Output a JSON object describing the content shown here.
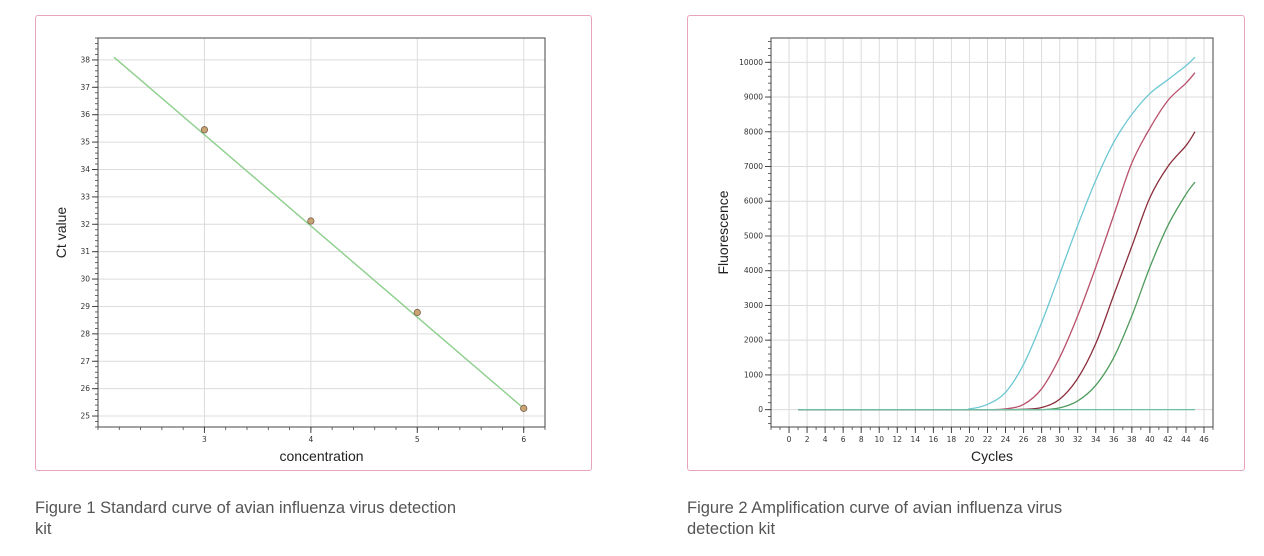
{
  "chart_data": [
    {
      "type": "scatter",
      "title": "",
      "xlabel": "concentration",
      "ylabel": "Ct value",
      "xlim": [
        2.0,
        6.2
      ],
      "ylim": [
        24.6,
        38.8
      ],
      "x_ticks": [
        3,
        4,
        5,
        6
      ],
      "y_ticks": [
        25,
        26,
        27,
        28,
        29,
        30,
        31,
        32,
        33,
        34,
        35,
        36,
        37,
        38
      ],
      "grid": true,
      "points": [
        {
          "x": 3,
          "y": 35.45
        },
        {
          "x": 4,
          "y": 32.12
        },
        {
          "x": 5,
          "y": 28.78
        },
        {
          "x": 6,
          "y": 25.28
        }
      ],
      "fit_line": {
        "x": [
          2.15,
          6.0
        ],
        "y": [
          38.1,
          25.28
        ],
        "color": "#8ccf8c"
      },
      "point_color": "#c8a472"
    },
    {
      "type": "line",
      "title": "",
      "xlabel": "Cycles",
      "ylabel": "Fluorescence",
      "xlim": [
        -2,
        47
      ],
      "ylim": [
        -500,
        10700
      ],
      "x_ticks": [
        0,
        2,
        4,
        6,
        8,
        10,
        12,
        14,
        16,
        18,
        20,
        22,
        24,
        26,
        28,
        30,
        32,
        34,
        36,
        38,
        40,
        42,
        44,
        46
      ],
      "y_ticks": [
        0,
        1000,
        2000,
        3000,
        4000,
        5000,
        6000,
        7000,
        8000,
        9000,
        10000
      ],
      "grid": true,
      "x": [
        1,
        18,
        20,
        22,
        24,
        26,
        28,
        30,
        32,
        34,
        36,
        38,
        40,
        42,
        44,
        45
      ],
      "series": [
        {
          "color": "#6cc8d4",
          "values": [
            0,
            0,
            20,
            150,
            500,
            1300,
            2500,
            3900,
            5300,
            6600,
            7700,
            8500,
            9100,
            9500,
            9900,
            10150
          ]
        },
        {
          "color": "#b84f6a",
          "values": [
            0,
            0,
            0,
            0,
            20,
            150,
            600,
            1500,
            2700,
            4100,
            5600,
            7100,
            8100,
            8900,
            9400,
            9700
          ]
        },
        {
          "color": "#8a2e3c",
          "values": [
            0,
            0,
            0,
            0,
            0,
            10,
            60,
            300,
            900,
            1900,
            3300,
            4700,
            6100,
            7000,
            7600,
            8000
          ]
        },
        {
          "color": "#4f9a5c",
          "values": [
            0,
            0,
            0,
            0,
            0,
            0,
            0,
            50,
            250,
            700,
            1500,
            2700,
            4100,
            5300,
            6200,
            6550
          ]
        },
        {
          "color": "#6cbfa4",
          "values": [
            0,
            0,
            0,
            0,
            0,
            0,
            0,
            0,
            0,
            0,
            0,
            0,
            0,
            0,
            0,
            0
          ]
        }
      ]
    }
  ],
  "captions": {
    "figure1": "Figure 1 Standard curve of avian influenza virus detection kit",
    "figure2": "Figure 2 Amplification curve of avian influenza virus detection kit"
  }
}
